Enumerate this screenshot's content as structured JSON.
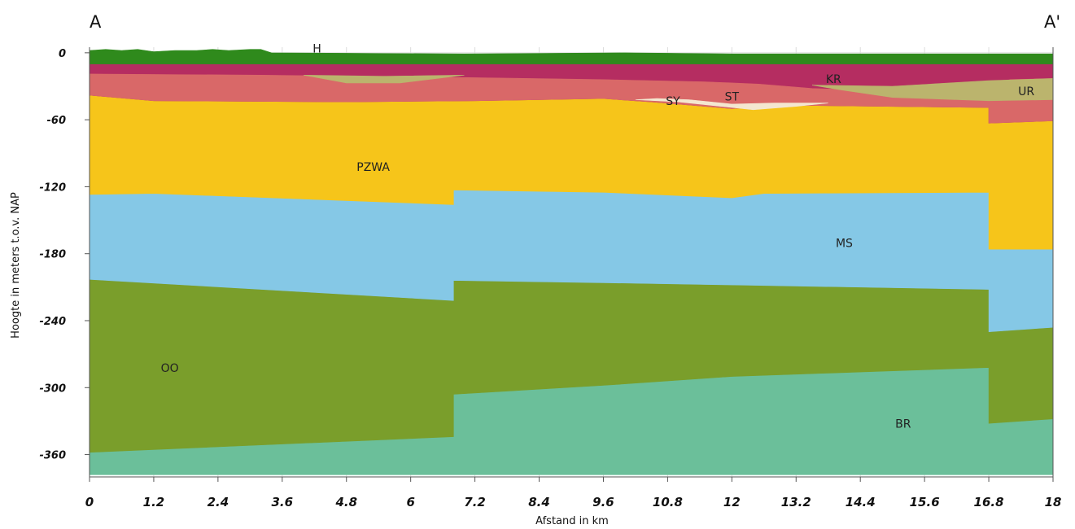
{
  "chart_data": {
    "type": "area",
    "section_start_label": "A",
    "section_end_label": "A'",
    "xlabel": "Afstand in km",
    "ylabel": "Hoogte in meters t.o.v. NAP",
    "xlim": [
      0,
      18
    ],
    "ylim": [
      -380,
      5
    ],
    "x_ticks": [
      {
        "value": 0,
        "label": "0"
      },
      {
        "value": 1.2,
        "label": "1.2"
      },
      {
        "value": 2.4,
        "label": "2.4"
      },
      {
        "value": 3.6,
        "label": "3.6"
      },
      {
        "value": 4.8,
        "label": "4.8"
      },
      {
        "value": 6,
        "label": "6"
      },
      {
        "value": 7.2,
        "label": "7.2"
      },
      {
        "value": 8.4,
        "label": "8.4"
      },
      {
        "value": 9.6,
        "label": "9.6"
      },
      {
        "value": 10.8,
        "label": "10.8"
      },
      {
        "value": 12,
        "label": "12"
      },
      {
        "value": 13.2,
        "label": "13.2"
      },
      {
        "value": 14.4,
        "label": "14.4"
      },
      {
        "value": 15.6,
        "label": "15.6"
      },
      {
        "value": 16.8,
        "label": "16.8"
      },
      {
        "value": 18,
        "label": "18"
      }
    ],
    "y_ticks": [
      {
        "value": 0,
        "label": "0"
      },
      {
        "value": -60,
        "label": "-60"
      },
      {
        "value": -120,
        "label": "-120"
      },
      {
        "value": -180,
        "label": "-180"
      },
      {
        "value": -240,
        "label": "-240"
      },
      {
        "value": -300,
        "label": "-300"
      },
      {
        "value": -360,
        "label": "-360"
      }
    ],
    "grid": true,
    "layers": [
      {
        "name": "BR",
        "color": "#6bbf9a",
        "label_pos": [
          15.2,
          -333
        ],
        "top": [
          [
            0,
            -358
          ],
          [
            6.8,
            -344
          ],
          [
            6.8,
            -306
          ],
          [
            9.6,
            -298
          ],
          [
            12,
            -290
          ],
          [
            14.4,
            -286
          ],
          [
            16.8,
            -282
          ],
          [
            16.8,
            -332
          ],
          [
            18,
            -328
          ]
        ],
        "bottom": [
          [
            0,
            -378
          ],
          [
            18,
            -378
          ]
        ]
      },
      {
        "name": "OO",
        "color": "#7a9e2b",
        "label_pos": [
          1.5,
          -283
        ],
        "top": [
          [
            0,
            -203
          ],
          [
            6.8,
            -222
          ],
          [
            6.8,
            -204
          ],
          [
            9.6,
            -206
          ],
          [
            12,
            -208
          ],
          [
            16.8,
            -212
          ],
          [
            16.8,
            -250
          ],
          [
            18,
            -246
          ]
        ],
        "bottom": [
          [
            0,
            -358
          ],
          [
            6.8,
            -344
          ],
          [
            6.8,
            -306
          ],
          [
            9.6,
            -298
          ],
          [
            12,
            -290
          ],
          [
            14.4,
            -286
          ],
          [
            16.8,
            -282
          ],
          [
            16.8,
            -332
          ],
          [
            18,
            -328
          ]
        ]
      },
      {
        "name": "MS",
        "color": "#85c8e6",
        "label_pos": [
          14.1,
          -171
        ],
        "top": [
          [
            0,
            -127
          ],
          [
            1.2,
            -126
          ],
          [
            6.8,
            -136
          ],
          [
            6.8,
            -123
          ],
          [
            9.6,
            -125
          ],
          [
            12,
            -130
          ],
          [
            12.6,
            -126
          ],
          [
            16.8,
            -125
          ],
          [
            16.8,
            -176
          ],
          [
            18,
            -176
          ]
        ],
        "bottom": [
          [
            0,
            -203
          ],
          [
            6.8,
            -222
          ],
          [
            6.8,
            -204
          ],
          [
            9.6,
            -206
          ],
          [
            12,
            -208
          ],
          [
            16.8,
            -212
          ],
          [
            16.8,
            -250
          ],
          [
            18,
            -246
          ]
        ]
      },
      {
        "name": "PZWA",
        "color": "#f6c51a",
        "label_pos": [
          5.3,
          -103
        ],
        "top": [
          [
            0,
            -38
          ],
          [
            1.2,
            -43
          ],
          [
            4.8,
            -44
          ],
          [
            7.2,
            -43
          ],
          [
            9.6,
            -41
          ],
          [
            10.5,
            -44
          ],
          [
            12,
            -50
          ],
          [
            13,
            -47
          ],
          [
            16.8,
            -49
          ],
          [
            16.8,
            -63
          ],
          [
            18,
            -61
          ]
        ],
        "bottom": [
          [
            0,
            -127
          ],
          [
            1.2,
            -126
          ],
          [
            6.8,
            -136
          ],
          [
            6.8,
            -123
          ],
          [
            9.6,
            -125
          ],
          [
            12,
            -130
          ],
          [
            12.6,
            -126
          ],
          [
            16.8,
            -125
          ],
          [
            16.8,
            -176
          ],
          [
            18,
            -176
          ]
        ]
      },
      {
        "name": "KR",
        "color": "#b52d61",
        "label_pos": [
          13.9,
          -24
        ],
        "top": [
          [
            0,
            -10
          ],
          [
            18,
            -10
          ]
        ],
        "bottom": [
          [
            0,
            -38
          ],
          [
            1.2,
            -43
          ],
          [
            4.8,
            -44
          ],
          [
            7.2,
            -43
          ],
          [
            9.6,
            -41
          ],
          [
            10.5,
            -44
          ],
          [
            12,
            -50
          ],
          [
            13,
            -47
          ],
          [
            16.8,
            -49
          ],
          [
            16.8,
            -63
          ],
          [
            18,
            -61
          ]
        ]
      },
      {
        "name": "ST",
        "color": "#d96868",
        "label_pos": [
          12,
          -40
        ],
        "top": [
          [
            0,
            -19
          ],
          [
            3.2,
            -20
          ],
          [
            6.8,
            -22
          ],
          [
            9.6,
            -24
          ],
          [
            11.5,
            -26
          ],
          [
            12.5,
            -28
          ],
          [
            13.5,
            -32
          ],
          [
            15,
            -34
          ],
          [
            16.5,
            -33
          ],
          [
            17.2,
            -24
          ],
          [
            18,
            -23
          ]
        ],
        "bottom": [
          [
            0,
            -38
          ],
          [
            1.2,
            -43
          ],
          [
            4.8,
            -44
          ],
          [
            7.2,
            -43
          ],
          [
            9.6,
            -41
          ],
          [
            10.5,
            -44
          ],
          [
            12,
            -50
          ],
          [
            13,
            -47
          ],
          [
            16.8,
            -49
          ],
          [
            16.8,
            -63
          ],
          [
            18,
            -61
          ]
        ]
      },
      {
        "name": "SY",
        "color": "#f4e7d0",
        "label_pos": [
          10.9,
          -44
        ],
        "polygon": [
          [
            10.2,
            -42
          ],
          [
            11,
            -44
          ],
          [
            11.8,
            -48
          ],
          [
            12.4,
            -51
          ],
          [
            13.2,
            -48
          ],
          [
            13.8,
            -45
          ],
          [
            12.8,
            -45
          ],
          [
            12,
            -46
          ],
          [
            11.2,
            -42
          ],
          [
            10.6,
            -41
          ]
        ]
      },
      {
        "name": "UR",
        "color": "#bbb46d",
        "label_pos": [
          17.5,
          -35
        ],
        "polygon": [
          [
            13.5,
            -29
          ],
          [
            15,
            -30
          ],
          [
            16.8,
            -25
          ],
          [
            18,
            -23
          ],
          [
            18,
            -42
          ],
          [
            16.8,
            -43
          ],
          [
            15,
            -40
          ],
          [
            14,
            -33
          ]
        ]
      },
      {
        "name": "UR-lens",
        "color": "#bbb46d",
        "polygon": [
          [
            4.0,
            -20
          ],
          [
            5.5,
            -21
          ],
          [
            7.0,
            -20
          ],
          [
            5.8,
            -27
          ],
          [
            4.8,
            -27
          ]
        ]
      },
      {
        "name": "H",
        "color": "#2f8a1c",
        "label_pos": [
          4.25,
          3
        ],
        "top_rough": true,
        "top": [
          [
            0,
            2
          ],
          [
            0.3,
            3
          ],
          [
            0.6,
            2
          ],
          [
            0.9,
            3
          ],
          [
            1.2,
            1
          ],
          [
            1.6,
            2
          ],
          [
            2.0,
            2
          ],
          [
            2.3,
            3
          ],
          [
            2.6,
            2
          ],
          [
            3.0,
            3
          ],
          [
            3.2,
            3
          ],
          [
            3.4,
            0
          ],
          [
            7,
            -1
          ],
          [
            10,
            0
          ],
          [
            12,
            -1
          ],
          [
            14,
            -1
          ],
          [
            18,
            -1
          ]
        ],
        "bottom": [
          [
            0,
            -10
          ],
          [
            18,
            -10
          ]
        ]
      }
    ]
  }
}
